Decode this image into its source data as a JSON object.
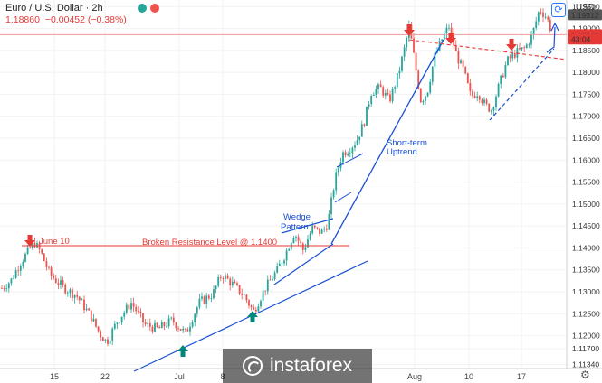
{
  "header": {
    "title": "Euro / U.S. Dollar · 2h",
    "price": "1.18860",
    "change": "−0.00452 (−0.38%)",
    "currency": "USD"
  },
  "chart_data": {
    "type": "candlestick",
    "instrument": "Euro / U.S. Dollar",
    "timeframe": "2h",
    "yaxis_ticks": [
      "1.19500",
      "1.19000",
      "1.18500",
      "1.18000",
      "1.17500",
      "1.17000",
      "1.16500",
      "1.16000",
      "1.15500",
      "1.15000",
      "1.14500",
      "1.14000",
      "1.13500",
      "1.13000",
      "1.12500",
      "1.12000",
      "1.11700",
      "1.11340"
    ],
    "ylim": [
      1.1125,
      1.1965
    ],
    "xaxis_ticks": [
      "15",
      "22",
      "Jul",
      "8",
      "Aug",
      "10",
      "17"
    ],
    "price_labels": [
      {
        "text": "1.19312",
        "value": 1.19312,
        "color": "#555555"
      },
      {
        "text": "1.18860",
        "value": 1.1886,
        "color": "#e53935"
      },
      {
        "text": "43:04",
        "value": 1.1876,
        "color": "#e53935"
      }
    ],
    "resistance_level": 1.1405,
    "current_price_line": 1.1886,
    "anchors": [
      [
        0,
        1.1305
      ],
      [
        12,
        1.1325
      ],
      [
        22,
        1.1365
      ],
      [
        32,
        1.1395
      ],
      [
        38,
        1.1412
      ],
      [
        45,
        1.139
      ],
      [
        55,
        1.134
      ],
      [
        70,
        1.131
      ],
      [
        85,
        1.129
      ],
      [
        100,
        1.1245
      ],
      [
        110,
        1.1205
      ],
      [
        118,
        1.1185
      ],
      [
        130,
        1.1235
      ],
      [
        145,
        1.1275
      ],
      [
        160,
        1.1225
      ],
      [
        175,
        1.1215
      ],
      [
        190,
        1.1235
      ],
      [
        205,
        1.1205
      ],
      [
        220,
        1.1275
      ],
      [
        235,
        1.1295
      ],
      [
        245,
        1.134
      ],
      [
        258,
        1.1315
      ],
      [
        270,
        1.129
      ],
      [
        280,
        1.1255
      ],
      [
        292,
        1.1305
      ],
      [
        305,
        1.1345
      ],
      [
        315,
        1.1385
      ],
      [
        325,
        1.1435
      ],
      [
        335,
        1.1395
      ],
      [
        345,
        1.1445
      ],
      [
        355,
        1.1435
      ],
      [
        362,
        1.1455
      ],
      [
        370,
        1.1555
      ],
      [
        378,
        1.1615
      ],
      [
        386,
        1.1625
      ],
      [
        394,
        1.1645
      ],
      [
        402,
        1.1685
      ],
      [
        410,
        1.1755
      ],
      [
        420,
        1.1765
      ],
      [
        430,
        1.1735
      ],
      [
        440,
        1.1795
      ],
      [
        448,
        1.1865
      ],
      [
        452,
        1.1905
      ],
      [
        458,
        1.1825
      ],
      [
        465,
        1.1735
      ],
      [
        472,
        1.1755
      ],
      [
        480,
        1.1835
      ],
      [
        488,
        1.1875
      ],
      [
        496,
        1.1905
      ],
      [
        505,
        1.1835
      ],
      [
        512,
        1.1805
      ],
      [
        520,
        1.1745
      ],
      [
        528,
        1.1755
      ],
      [
        536,
        1.1725
      ],
      [
        543,
        1.1715
      ],
      [
        552,
        1.1775
      ],
      [
        560,
        1.1825
      ],
      [
        570,
        1.1845
      ],
      [
        580,
        1.1855
      ],
      [
        588,
        1.1885
      ],
      [
        596,
        1.1945
      ],
      [
        604,
        1.1925
      ],
      [
        609,
        1.1895
      ]
    ],
    "annotations": [
      {
        "text": "June 10",
        "color": "#e53935"
      },
      {
        "text": "Broken Resistance Level @ 1.1400",
        "color": "#e53935"
      },
      {
        "text": "Wedge",
        "color": "#1a4fd6"
      },
      {
        "text": "Pattern",
        "color": "#1a4fd6"
      },
      {
        "text": "Short-term",
        "color": "#1a4fd6"
      },
      {
        "text": "Uptrend",
        "color": "#1a4fd6"
      }
    ],
    "colors": {
      "up": "#26a69a",
      "down": "#ef5350",
      "trend": "#1a4fd6",
      "resistance": "#e53935"
    }
  },
  "watermark": {
    "text": "instaforex"
  }
}
